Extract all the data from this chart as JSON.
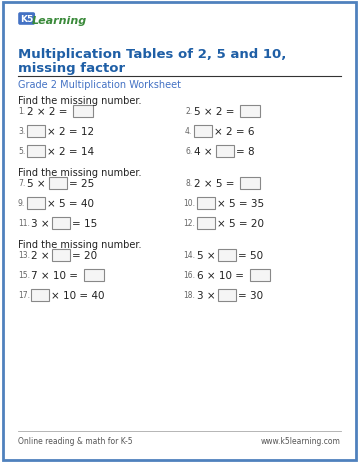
{
  "title_line1": "Multiplication Tables of 2, 5 and 10,",
  "title_line2": "missing factor",
  "subtitle": "Grade 2 Multiplication Worksheet",
  "section_label": "Find the missing number.",
  "footer_left": "Online reading & math for K-5",
  "footer_right": "www.k5learning.com",
  "bg_color": "#ffffff",
  "border_color": "#4f81bd",
  "title_color": "#1f5fa6",
  "subtitle_color": "#4472c4",
  "text_color": "#222222",
  "section_label_color": "#222222",
  "num_color": "#666666",
  "box_edge_color": "#888888",
  "box_face_color": "#f5f5f5",
  "footer_color": "#555555",
  "line_color": "#333333"
}
